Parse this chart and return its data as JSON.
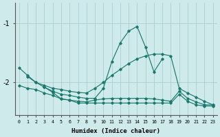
{
  "xlabel": "Humidex (Indice chaleur)",
  "bg_color": "#ceeaea",
  "grid_color": "#aacece",
  "line_color": "#1a7a6e",
  "xlim": [
    -0.5,
    23.5
  ],
  "ylim": [
    -2.55,
    -0.65
  ],
  "yticks": [
    -2,
    -1
  ],
  "x_labels": [
    "0",
    "1",
    "2",
    "3",
    "4",
    "5",
    "6",
    "7",
    "8",
    "9",
    "10",
    "11",
    "12",
    "13",
    "14",
    "15",
    "16",
    "17",
    "18",
    "19",
    "20",
    "21",
    "22",
    "23"
  ],
  "line1_x": [
    0,
    1,
    2,
    3,
    4,
    5,
    6,
    7,
    8,
    9,
    10,
    11,
    12,
    13,
    14,
    15,
    16,
    17,
    18,
    19,
    20,
    21,
    22,
    23
  ],
  "line1_y": [
    -1.75,
    -1.88,
    -2.0,
    -2.05,
    -2.1,
    -2.12,
    -2.15,
    -2.17,
    -2.18,
    -2.1,
    -2.0,
    -1.88,
    -1.78,
    -1.68,
    -1.6,
    -1.55,
    -1.52,
    -1.52,
    -1.55,
    -2.1,
    -2.18,
    -2.25,
    -2.32,
    -2.38
  ],
  "line2_x": [
    1,
    2,
    3,
    4,
    5,
    6,
    7,
    8,
    9,
    10,
    11,
    12,
    13,
    14,
    15,
    16,
    17
  ],
  "line2_y": [
    -1.9,
    -2.0,
    -2.08,
    -2.15,
    -2.2,
    -2.22,
    -2.25,
    -2.27,
    -2.27,
    -2.1,
    -1.65,
    -1.33,
    -1.13,
    -1.05,
    -1.4,
    -1.82,
    -1.6
  ],
  "line3_x": [
    0,
    1,
    2,
    3,
    4,
    5,
    6,
    7,
    8,
    9,
    10,
    11,
    12,
    13,
    14,
    15,
    16,
    17,
    18,
    19,
    20,
    21,
    22,
    23
  ],
  "line3_y": [
    -2.05,
    -2.1,
    -2.12,
    -2.18,
    -2.22,
    -2.28,
    -2.3,
    -2.32,
    -2.33,
    -2.3,
    -2.28,
    -2.27,
    -2.27,
    -2.27,
    -2.27,
    -2.27,
    -2.28,
    -2.3,
    -2.32,
    -2.15,
    -2.27,
    -2.33,
    -2.38,
    -2.38
  ],
  "line4_x": [
    3,
    4,
    5,
    6,
    7,
    8,
    9,
    10,
    11,
    12,
    13,
    14,
    15,
    16,
    17,
    18,
    19,
    20,
    21,
    22,
    23
  ],
  "line4_y": [
    -2.08,
    -2.17,
    -2.28,
    -2.3,
    -2.35,
    -2.35,
    -2.35,
    -2.35,
    -2.35,
    -2.35,
    -2.35,
    -2.35,
    -2.35,
    -2.35,
    -2.35,
    -2.35,
    -2.2,
    -2.32,
    -2.38,
    -2.4,
    -2.4
  ]
}
